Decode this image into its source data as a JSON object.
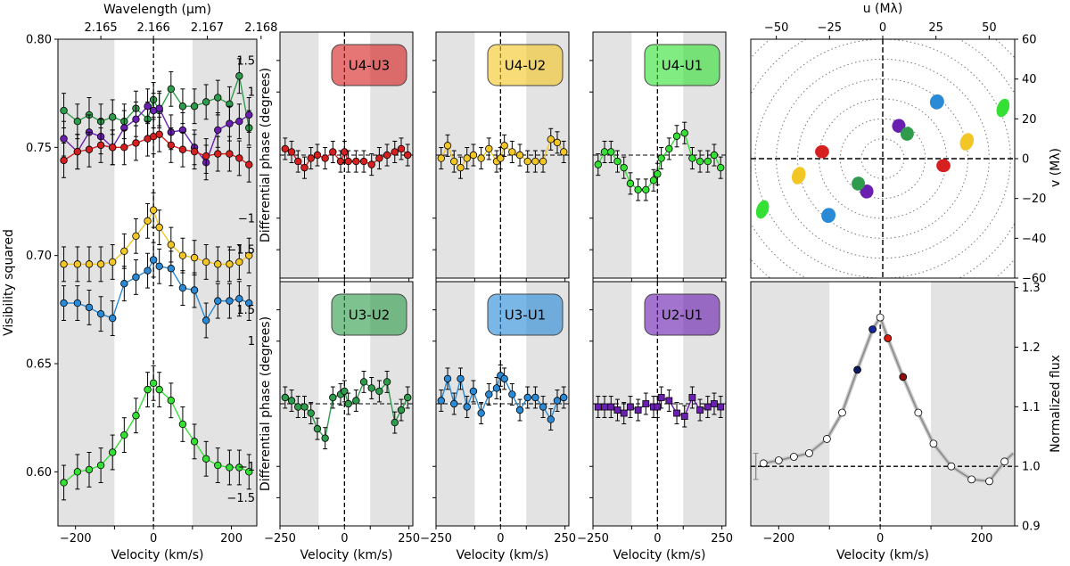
{
  "colors": {
    "U4-U3": "#d62020",
    "U4-U2": "#f2c624",
    "U4-U1": "#33e033",
    "U3-U2": "#2e9c4c",
    "U3-U1": "#2a8ad6",
    "U2-U1": "#6a1fb0",
    "shade": "#e3e3e3",
    "flux_line": "#8a8a8a"
  },
  "chart_data": [
    {
      "id": "visibility",
      "type": "line",
      "ylabel": "Visibility squared",
      "xlabel": "Velocity (km/s)",
      "top_xlabel": "Wavelength (μm)",
      "top_ticks": [
        "2.165",
        "2.166",
        "2.167",
        "2.168"
      ],
      "top_tick_velocities": [
        -135,
        0,
        138,
        276
      ],
      "xlim": [
        -245,
        265
      ],
      "ylim": [
        0.575,
        0.8
      ],
      "xticks": [
        -200,
        -100,
        0,
        100,
        200
      ],
      "xtick_labels": [
        "−200",
        "",
        "0",
        "",
        "200"
      ],
      "yticks": [
        0.6,
        0.65,
        0.7,
        0.75,
        0.8
      ],
      "ytick_labels": [
        "0.60",
        "0.65",
        "0.70",
        "0.75",
        "0.80"
      ],
      "shaded": [
        [
          -245,
          -100
        ],
        [
          100,
          265
        ]
      ],
      "x": [
        -230,
        -195,
        -165,
        -135,
        -105,
        -75,
        -45,
        -15,
        0,
        15,
        45,
        75,
        105,
        135,
        165,
        195,
        220,
        245
      ],
      "series": [
        {
          "baseline": "U3-U2",
          "values": [
            0.767,
            0.762,
            0.765,
            0.762,
            0.764,
            0.762,
            0.768,
            0.763,
            0.772,
            0.767,
            0.777,
            0.769,
            0.769,
            0.771,
            0.773,
            0.77,
            0.783,
            0.759
          ]
        },
        {
          "baseline": "U2-U1",
          "values": [
            0.754,
            0.748,
            0.757,
            0.755,
            0.75,
            0.759,
            0.763,
            0.769,
            0.767,
            0.768,
            0.757,
            0.758,
            0.75,
            0.743,
            0.758,
            0.761,
            0.762,
            0.765
          ]
        },
        {
          "baseline": "U4-U3",
          "values": [
            0.744,
            0.748,
            0.749,
            0.751,
            0.75,
            0.75,
            0.752,
            0.754,
            0.755,
            0.756,
            0.751,
            0.749,
            0.748,
            0.746,
            0.747,
            0.747,
            0.745,
            0.742
          ]
        },
        {
          "baseline": "U4-U2",
          "values": [
            0.696,
            0.696,
            0.696,
            0.696,
            0.697,
            0.702,
            0.709,
            0.716,
            0.721,
            0.713,
            0.705,
            0.7,
            0.699,
            0.697,
            0.696,
            0.696,
            0.697,
            0.7
          ]
        },
        {
          "baseline": "U3-U1",
          "values": [
            0.678,
            0.678,
            0.676,
            0.673,
            0.671,
            0.687,
            0.69,
            0.693,
            0.698,
            0.695,
            0.694,
            0.685,
            0.684,
            0.67,
            0.679,
            0.679,
            0.68,
            0.678
          ]
        },
        {
          "baseline": "U4-U1",
          "values": [
            0.595,
            0.6,
            0.601,
            0.603,
            0.609,
            0.617,
            0.626,
            0.638,
            0.641,
            0.638,
            0.633,
            0.622,
            0.614,
            0.606,
            0.603,
            0.602,
            0.602,
            0.6
          ]
        }
      ],
      "error": 0.008
    },
    {
      "id": "phase",
      "type": "line",
      "ylabel": "Differential phase (degrees)",
      "xlabel": "Velocity (km/s)",
      "xlim": [
        -250,
        265
      ],
      "ylim": [
        -1.95,
        1.95
      ],
      "xticks": [
        -250,
        -100,
        0,
        100,
        250
      ],
      "xtick_labels": [
        "−250",
        "",
        "0",
        "",
        "250"
      ],
      "yticks": [
        1.5,
        1,
        -1,
        -1.5
      ],
      "ytick_labels": [
        "1.5",
        "1",
        "−1",
        "−1.5"
      ],
      "shaded": [
        [
          -250,
          -100
        ],
        [
          100,
          265
        ]
      ],
      "x": [
        -230,
        -205,
        -180,
        -155,
        -130,
        -105,
        -75,
        -45,
        -15,
        0,
        15,
        45,
        75,
        105,
        135,
        165,
        195,
        220,
        245
      ],
      "error": 0.17,
      "panels": [
        {
          "baseline": "U4-U3",
          "label": "U4-U3",
          "marker": "circle",
          "values": [
            0.1,
            0.05,
            -0.1,
            -0.2,
            -0.05,
            0.0,
            -0.05,
            0.05,
            -0.1,
            0.05,
            -0.1,
            -0.1,
            -0.1,
            -0.15,
            -0.05,
            0.0,
            0.05,
            0.1,
            0.0
          ]
        },
        {
          "baseline": "U4-U2",
          "label": "U4-U2",
          "marker": "circle",
          "values": [
            -0.05,
            0.15,
            -0.1,
            -0.2,
            -0.05,
            0.0,
            -0.05,
            0.1,
            -0.1,
            -0.05,
            0.15,
            0.05,
            0.0,
            -0.1,
            -0.1,
            -0.1,
            0.25,
            0.2,
            0.05
          ]
        },
        {
          "baseline": "U4-U1",
          "label": "U4-U1",
          "marker": "circle",
          "values": [
            -0.15,
            0.05,
            0.05,
            -0.1,
            -0.2,
            -0.45,
            -0.55,
            -0.55,
            -0.4,
            -0.3,
            -0.05,
            0.1,
            0.3,
            0.35,
            -0.05,
            -0.1,
            -0.1,
            0.0,
            -0.2
          ]
        },
        {
          "baseline": "U3-U2",
          "label": "U3-U2",
          "marker": "circle",
          "values": [
            0.1,
            0.05,
            -0.05,
            -0.05,
            -0.15,
            -0.4,
            -0.55,
            0.1,
            0.15,
            0.2,
            0.0,
            0.05,
            0.35,
            0.25,
            0.2,
            0.35,
            -0.3,
            -0.1,
            0.1
          ]
        },
        {
          "baseline": "U3-U1",
          "label": "U3-U1",
          "marker": "circle",
          "values": [
            0.05,
            0.4,
            0.0,
            0.4,
            -0.05,
            0.2,
            -0.15,
            0.15,
            0.25,
            0.45,
            0.4,
            0.15,
            -0.1,
            0.1,
            0.1,
            -0.05,
            -0.25,
            0.05,
            0.1
          ]
        },
        {
          "baseline": "U2-U1",
          "label": "U2-U1",
          "marker": "square",
          "values": [
            -0.05,
            -0.05,
            -0.05,
            -0.1,
            -0.15,
            -0.05,
            -0.1,
            0.0,
            -0.05,
            -0.05,
            0.1,
            0.05,
            -0.15,
            -0.2,
            0.1,
            -0.1,
            -0.05,
            0.0,
            -0.05
          ]
        }
      ]
    },
    {
      "id": "uv",
      "type": "scatter",
      "xlabel": "u (Mλ)",
      "ylabel": "v (Mλ)",
      "xlim": [
        -62,
        62
      ],
      "ylim": [
        -60,
        60
      ],
      "xticks": [
        -50,
        -25,
        0,
        25,
        50
      ],
      "xtick_labels": [
        "−50",
        "−25",
        "0",
        "25",
        "50"
      ],
      "yticks": [
        60,
        40,
        20,
        0,
        -20,
        -40,
        -60
      ],
      "ytick_labels": [
        "60",
        "40",
        "20",
        "0",
        "−20",
        "−40",
        "−60"
      ],
      "circle_radii": [
        10,
        20,
        30,
        40,
        50,
        60,
        70,
        80
      ],
      "points": [
        {
          "baseline": "U4-U1",
          "u": 56.5,
          "v": 25.5,
          "du": 0.5,
          "dv": 2.5
        },
        {
          "baseline": "U4-U1",
          "u": -56.5,
          "v": -25.5,
          "du": 0.5,
          "dv": 2.5
        },
        {
          "baseline": "U3-U1",
          "u": 25.5,
          "v": 28.5,
          "du": 1.0,
          "dv": 1.5
        },
        {
          "baseline": "U3-U1",
          "u": -25.5,
          "v": -28.5,
          "du": 1.0,
          "dv": 1.5
        },
        {
          "baseline": "U4-U2",
          "u": 39.5,
          "v": 8.5,
          "du": 0.8,
          "dv": 2.2
        },
        {
          "baseline": "U4-U2",
          "u": -39.5,
          "v": -8.5,
          "du": 0.8,
          "dv": 2.2
        },
        {
          "baseline": "U2-U1",
          "u": 7.5,
          "v": 16.5,
          "du": 0.8,
          "dv": 1.2
        },
        {
          "baseline": "U2-U1",
          "u": -7.5,
          "v": -16.5,
          "du": 0.8,
          "dv": 1.2
        },
        {
          "baseline": "U3-U2",
          "u": 11.5,
          "v": 12.5,
          "du": 0.8,
          "dv": 1.2
        },
        {
          "baseline": "U3-U2",
          "u": -11.5,
          "v": -12.5,
          "du": 0.8,
          "dv": 1.2
        },
        {
          "baseline": "U4-U3",
          "u": 28.5,
          "v": -3.5,
          "du": 1.0,
          "dv": 1.0
        },
        {
          "baseline": "U4-U3",
          "u": -28.5,
          "v": 3.5,
          "du": 1.0,
          "dv": 1.0
        }
      ]
    },
    {
      "id": "flux",
      "type": "line",
      "ylabel": "Normalized flux",
      "xlabel": "Velocity (km/s)",
      "xlim": [
        -255,
        265
      ],
      "ylim": [
        0.9,
        1.31
      ],
      "xticks": [
        -200,
        -100,
        0,
        100,
        200
      ],
      "xtick_labels": [
        "−200",
        "",
        "0",
        "",
        "200"
      ],
      "yticks": [
        0.9,
        1.0,
        1.1,
        1.2,
        1.3
      ],
      "ytick_labels": [
        "0.9",
        "1.0",
        "1.1",
        "1.2",
        "1.3"
      ],
      "shaded": [
        [
          -255,
          -100
        ],
        [
          100,
          265
        ]
      ],
      "x": [
        -230,
        -200,
        -170,
        -140,
        -105,
        -75,
        -45,
        -15,
        0,
        15,
        45,
        75,
        105,
        140,
        180,
        215,
        245
      ],
      "values": [
        1.005,
        1.01,
        1.016,
        1.022,
        1.046,
        1.09,
        1.162,
        1.23,
        1.25,
        1.215,
        1.15,
        1.09,
        1.038,
        1.0,
        0.978,
        0.975,
        1.008
      ],
      "marker_colors": [
        "#ffffff",
        "#ffffff",
        "#ffffff",
        "#ffffff",
        "#ffffff",
        "#ffffff",
        "#0a1a5c",
        "#1428a0",
        "#ffffff",
        "#d81c10",
        "#900e10",
        "#ffffff",
        "#ffffff",
        "#ffffff",
        "#ffffff",
        "#ffffff",
        "#ffffff"
      ],
      "error_bar": {
        "x": -245,
        "y": 1.0,
        "err": 0.022
      }
    }
  ]
}
